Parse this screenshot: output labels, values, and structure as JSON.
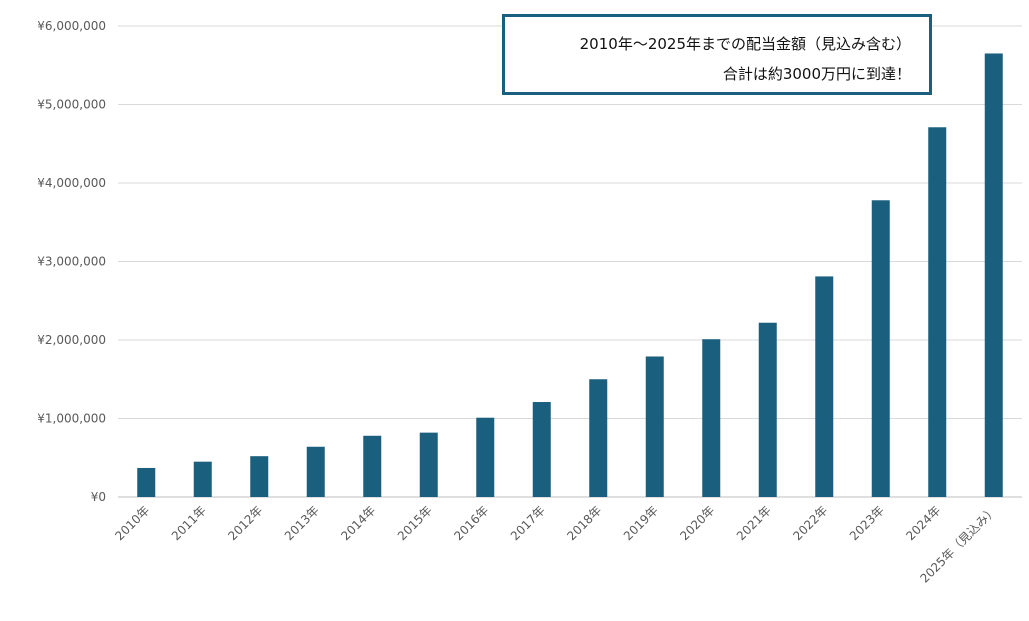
{
  "chart_data": {
    "type": "bar",
    "categories": [
      "2010年",
      "2011年",
      "2012年",
      "2013年",
      "2014年",
      "2015年",
      "2016年",
      "2017年",
      "2018年",
      "2019年",
      "2020年",
      "2021年",
      "2022年",
      "2023年",
      "2024年",
      "2025年（見込み）"
    ],
    "values": [
      370000,
      450000,
      520000,
      640000,
      780000,
      820000,
      1010000,
      1210000,
      1500000,
      1790000,
      2010000,
      2220000,
      2810000,
      3780000,
      4710000,
      5650000
    ],
    "ylim": [
      0,
      6000000
    ],
    "y_ticks": [
      0,
      1000000,
      2000000,
      3000000,
      4000000,
      5000000,
      6000000
    ],
    "y_tick_labels": [
      "¥0",
      "¥1,000,000",
      "¥2,000,000",
      "¥3,000,000",
      "¥4,000,000",
      "¥5,000,000",
      "¥6,000,000"
    ],
    "grid": "horizontal",
    "bar_color": "#1b5f7f",
    "legend": "none"
  },
  "callout": {
    "line1": "2010年～2025年までの配当金額（見込み含む）",
    "line2": "合計は約3000万円に到達！",
    "border_color": "#1b5f7f"
  },
  "colors": {
    "grid": "#d9d9d9",
    "axis_text": "#595959",
    "baseline": "#bfbfbf"
  }
}
